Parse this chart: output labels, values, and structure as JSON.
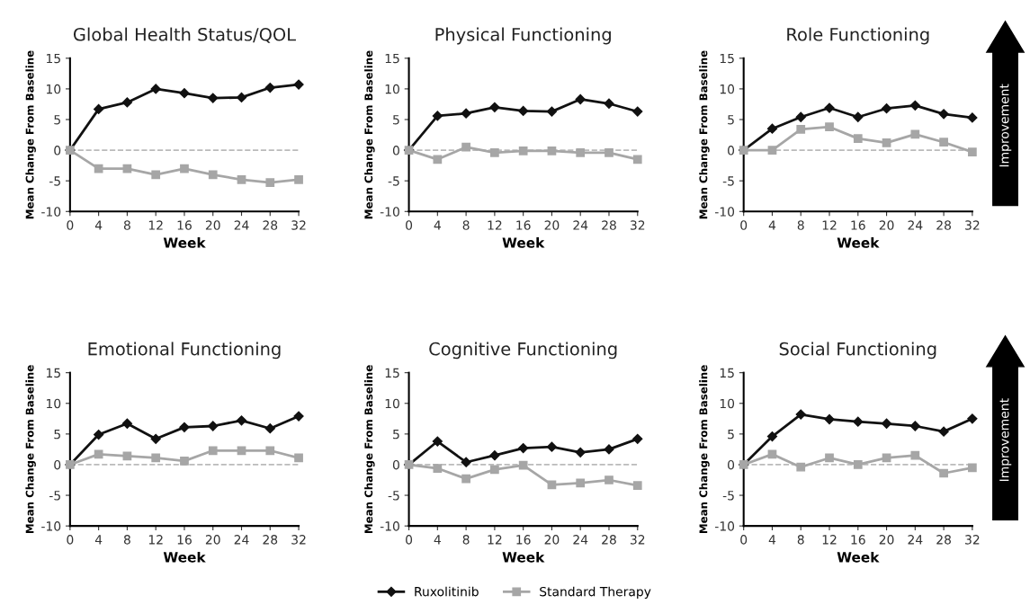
{
  "chart_data": [
    {
      "type": "line",
      "title": "Global Health Status/QOL",
      "xlabel": "Week",
      "ylabel": "Mean Change From Baseline",
      "x": [
        0,
        4,
        8,
        12,
        16,
        20,
        24,
        28,
        32
      ],
      "xlim": [
        0,
        32
      ],
      "xticks": [
        0,
        4,
        8,
        12,
        16,
        20,
        24,
        28,
        32
      ],
      "ylim": [
        -10,
        15
      ],
      "yticks": [
        -10,
        -5,
        0,
        5,
        10,
        15
      ],
      "grid": false,
      "legend": "bottom",
      "ref_lines": [
        {
          "axis": "y",
          "value": 0,
          "color": "#bbbbbb",
          "line_style": "dashed"
        }
      ],
      "series": [
        {
          "name": "Ruxolitinib",
          "color": "#111111",
          "marker": "diamond",
          "values": [
            0,
            6.7,
            7.8,
            10,
            9.3,
            8.5,
            8.6,
            10.2,
            10.7
          ]
        },
        {
          "name": "Standard Therapy",
          "color": "#a6a6a6",
          "marker": "square",
          "values": [
            0,
            -3,
            -3,
            -4,
            -3,
            -4,
            -4.8,
            -5.3,
            -4.8
          ]
        }
      ]
    },
    {
      "type": "line",
      "title": "Physical Functioning",
      "xlabel": "Week",
      "ylabel": "Mean Change From Baseline",
      "x": [
        0,
        4,
        8,
        12,
        16,
        20,
        24,
        28,
        32
      ],
      "xlim": [
        0,
        32
      ],
      "xticks": [
        0,
        4,
        8,
        12,
        16,
        20,
        24,
        28,
        32
      ],
      "ylim": [
        -10,
        15
      ],
      "yticks": [
        -10,
        -5,
        0,
        5,
        10,
        15
      ],
      "grid": false,
      "legend": false,
      "ref_lines": [
        {
          "axis": "y",
          "value": 0,
          "color": "#bbbbbb",
          "line_style": "dashed"
        }
      ],
      "series": [
        {
          "color": "#111111",
          "marker": "diamond",
          "values": [
            0,
            5.6,
            6,
            7,
            6.4,
            6.3,
            8.3,
            7.6,
            6.3
          ]
        },
        {
          "color": "#a6a6a6",
          "marker": "square",
          "values": [
            0,
            -1.5,
            0.5,
            -0.4,
            -0.1,
            -0.1,
            -0.4,
            -0.4,
            -1.5
          ]
        }
      ]
    },
    {
      "type": "line",
      "title": "Role Functioning",
      "xlabel": "Week",
      "ylabel": "Mean Change From Baseline",
      "x": [
        0,
        4,
        8,
        12,
        16,
        20,
        24,
        28,
        32
      ],
      "xlim": [
        0,
        32
      ],
      "xticks": [
        0,
        4,
        8,
        12,
        16,
        20,
        24,
        28,
        32
      ],
      "ylim": [
        -10,
        15
      ],
      "yticks": [
        -10,
        -5,
        0,
        5,
        10,
        15
      ],
      "grid": false,
      "legend": false,
      "annotations": [
        "Improvement"
      ],
      "ref_lines": [
        {
          "axis": "y",
          "value": 0,
          "color": "#bbbbbb",
          "line_style": "dashed"
        }
      ],
      "series": [
        {
          "color": "#111111",
          "marker": "diamond",
          "values": [
            0,
            3.5,
            5.4,
            6.9,
            5.4,
            6.8,
            7.3,
            5.9,
            5.3
          ]
        },
        {
          "color": "#a6a6a6",
          "marker": "square",
          "values": [
            0,
            0,
            3.4,
            3.8,
            1.9,
            1.2,
            2.6,
            1.3,
            -0.3
          ]
        }
      ]
    },
    {
      "type": "line",
      "title": "Emotional Functioning",
      "xlabel": "Week",
      "ylabel": "Mean Change From Baseline",
      "x": [
        0,
        4,
        8,
        12,
        16,
        20,
        24,
        28,
        32
      ],
      "xlim": [
        0,
        32
      ],
      "xticks": [
        0,
        4,
        8,
        12,
        16,
        20,
        24,
        28,
        32
      ],
      "ylim": [
        -10,
        15
      ],
      "yticks": [
        -10,
        -5,
        0,
        5,
        10,
        15
      ],
      "grid": false,
      "legend": false,
      "ref_lines": [
        {
          "axis": "y",
          "value": 0,
          "color": "#bbbbbb",
          "line_style": "dashed"
        }
      ],
      "series": [
        {
          "color": "#111111",
          "marker": "diamond",
          "values": [
            0,
            4.9,
            6.7,
            4.2,
            6.1,
            6.3,
            7.2,
            5.9,
            7.9
          ]
        },
        {
          "color": "#a6a6a6",
          "marker": "square",
          "values": [
            0,
            1.7,
            1.4,
            1.1,
            0.6,
            2.3,
            2.3,
            2.3,
            1.1
          ]
        }
      ]
    },
    {
      "type": "line",
      "title": "Cognitive Functioning",
      "xlabel": "Week",
      "ylabel": "Mean Change From Baseline",
      "x": [
        0,
        4,
        8,
        12,
        16,
        20,
        24,
        28,
        32
      ],
      "xlim": [
        0,
        32
      ],
      "xticks": [
        0,
        4,
        8,
        12,
        16,
        20,
        24,
        28,
        32
      ],
      "ylim": [
        -10,
        15
      ],
      "yticks": [
        -10,
        -5,
        0,
        5,
        10,
        15
      ],
      "grid": false,
      "legend": false,
      "ref_lines": [
        {
          "axis": "y",
          "value": 0,
          "color": "#bbbbbb",
          "line_style": "dashed"
        }
      ],
      "series": [
        {
          "color": "#111111",
          "marker": "diamond",
          "values": [
            0,
            3.8,
            0.4,
            1.5,
            2.7,
            2.9,
            2,
            2.5,
            4.2
          ]
        },
        {
          "color": "#a6a6a6",
          "marker": "square",
          "values": [
            0,
            -0.6,
            -2.3,
            -0.8,
            -0.1,
            -3.3,
            -3,
            -2.5,
            -3.4
          ]
        }
      ]
    },
    {
      "type": "line",
      "title": "Social Functioning",
      "xlabel": "Week",
      "ylabel": "Mean Change From Baseline",
      "x": [
        0,
        4,
        8,
        12,
        16,
        20,
        24,
        28,
        32
      ],
      "xlim": [
        0,
        32
      ],
      "xticks": [
        0,
        4,
        8,
        12,
        16,
        20,
        24,
        28,
        32
      ],
      "ylim": [
        -10,
        15
      ],
      "yticks": [
        -10,
        -5,
        0,
        5,
        10,
        15
      ],
      "grid": false,
      "legend": false,
      "annotations": [
        "Improvement"
      ],
      "ref_lines": [
        {
          "axis": "y",
          "value": 0,
          "color": "#bbbbbb",
          "line_style": "dashed"
        }
      ],
      "series": [
        {
          "color": "#111111",
          "marker": "diamond",
          "values": [
            0,
            4.6,
            8.2,
            7.4,
            7,
            6.7,
            6.3,
            5.4,
            7.5
          ]
        },
        {
          "color": "#a6a6a6",
          "marker": "square",
          "values": [
            0,
            1.7,
            -0.4,
            1.1,
            0,
            1.1,
            1.5,
            -1.4,
            -0.5
          ]
        }
      ]
    }
  ]
}
